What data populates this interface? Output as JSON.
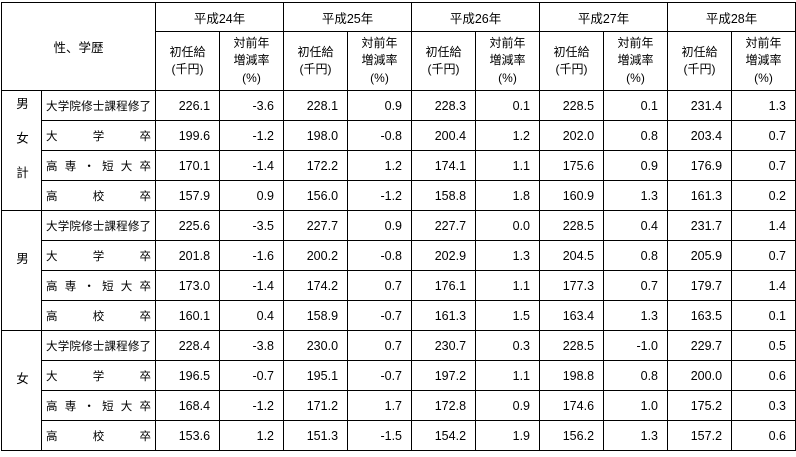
{
  "chart_data": {
    "type": "table",
    "corner_label": "性、学歴",
    "years": [
      "平成24年",
      "平成25年",
      "平成26年",
      "平成27年",
      "平成28年"
    ],
    "measures": {
      "salary": "初任給\n(千円)",
      "rate": "対前年\n増減率\n(%)"
    },
    "groups": [
      {
        "label": "男女計",
        "rows": [
          {
            "education": "大学院修士課程修了",
            "values": [
              [
                "226.1",
                "-3.6"
              ],
              [
                "228.1",
                "0.9"
              ],
              [
                "228.3",
                "0.1"
              ],
              [
                "228.5",
                "0.1"
              ],
              [
                "231.4",
                "1.3"
              ]
            ]
          },
          {
            "education": "大学卒",
            "values": [
              [
                "199.6",
                "-1.2"
              ],
              [
                "198.0",
                "-0.8"
              ],
              [
                "200.4",
                "1.2"
              ],
              [
                "202.0",
                "0.8"
              ],
              [
                "203.4",
                "0.7"
              ]
            ]
          },
          {
            "education": "高専・短大卒",
            "values": [
              [
                "170.1",
                "-1.4"
              ],
              [
                "172.2",
                "1.2"
              ],
              [
                "174.1",
                "1.1"
              ],
              [
                "175.6",
                "0.9"
              ],
              [
                "176.9",
                "0.7"
              ]
            ]
          },
          {
            "education": "高校卒",
            "values": [
              [
                "157.9",
                "0.9"
              ],
              [
                "156.0",
                "-1.2"
              ],
              [
                "158.8",
                "1.8"
              ],
              [
                "160.9",
                "1.3"
              ],
              [
                "161.3",
                "0.2"
              ]
            ]
          }
        ]
      },
      {
        "label": "男",
        "rows": [
          {
            "education": "大学院修士課程修了",
            "values": [
              [
                "225.6",
                "-3.5"
              ],
              [
                "227.7",
                "0.9"
              ],
              [
                "227.7",
                "0.0"
              ],
              [
                "228.5",
                "0.4"
              ],
              [
                "231.7",
                "1.4"
              ]
            ]
          },
          {
            "education": "大学卒",
            "values": [
              [
                "201.8",
                "-1.6"
              ],
              [
                "200.2",
                "-0.8"
              ],
              [
                "202.9",
                "1.3"
              ],
              [
                "204.5",
                "0.8"
              ],
              [
                "205.9",
                "0.7"
              ]
            ]
          },
          {
            "education": "高専・短大卒",
            "values": [
              [
                "173.0",
                "-1.4"
              ],
              [
                "174.2",
                "0.7"
              ],
              [
                "176.1",
                "1.1"
              ],
              [
                "177.3",
                "0.7"
              ],
              [
                "179.7",
                "1.4"
              ]
            ]
          },
          {
            "education": "高校卒",
            "values": [
              [
                "160.1",
                "0.4"
              ],
              [
                "158.9",
                "-0.7"
              ],
              [
                "161.3",
                "1.5"
              ],
              [
                "163.4",
                "1.3"
              ],
              [
                "163.5",
                "0.1"
              ]
            ]
          }
        ]
      },
      {
        "label": "女",
        "rows": [
          {
            "education": "大学院修士課程修了",
            "values": [
              [
                "228.4",
                "-3.8"
              ],
              [
                "230.0",
                "0.7"
              ],
              [
                "230.7",
                "0.3"
              ],
              [
                "228.5",
                "-1.0"
              ],
              [
                "229.7",
                "0.5"
              ]
            ]
          },
          {
            "education": "大学卒",
            "values": [
              [
                "196.5",
                "-0.7"
              ],
              [
                "195.1",
                "-0.7"
              ],
              [
                "197.2",
                "1.1"
              ],
              [
                "198.8",
                "0.8"
              ],
              [
                "200.0",
                "0.6"
              ]
            ]
          },
          {
            "education": "高専・短大卒",
            "values": [
              [
                "168.4",
                "-1.2"
              ],
              [
                "171.2",
                "1.7"
              ],
              [
                "172.8",
                "0.9"
              ],
              [
                "174.6",
                "1.0"
              ],
              [
                "175.2",
                "0.3"
              ]
            ]
          },
          {
            "education": "高校卒",
            "values": [
              [
                "153.6",
                "1.2"
              ],
              [
                "151.3",
                "-1.5"
              ],
              [
                "154.2",
                "1.9"
              ],
              [
                "156.2",
                "1.3"
              ],
              [
                "157.2",
                "0.6"
              ]
            ]
          }
        ]
      }
    ],
    "colors": {
      "border": "#000000",
      "background": "#ffffff",
      "text": "#000000"
    }
  }
}
